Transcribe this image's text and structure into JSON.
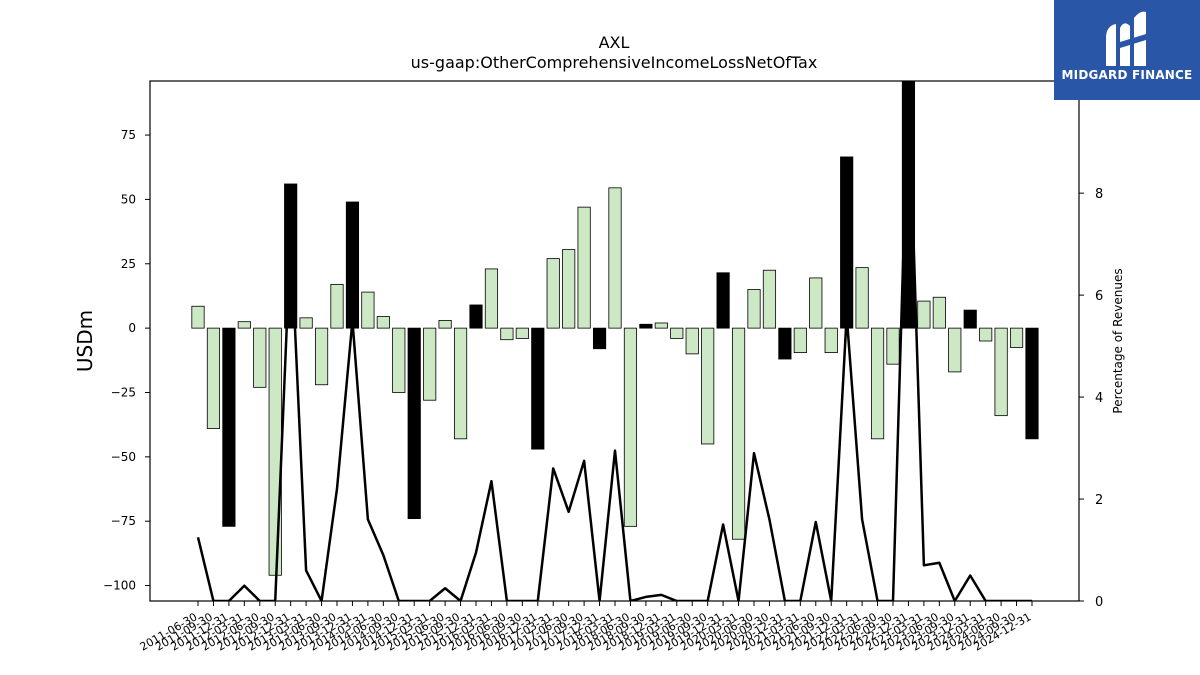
{
  "chart_data": {
    "type": "bar",
    "title": "AXL",
    "subtitle": "us-gaap:OtherComprehensiveIncomeLossNetOfTax",
    "ylabel": "USDm",
    "y2label": "Percentage of Revenues",
    "ylim": [
      -106,
      96
    ],
    "y2lim": [
      0,
      10.2
    ],
    "yticks": [
      -100,
      -75,
      -50,
      -25,
      0,
      25,
      50,
      75
    ],
    "y2ticks": [
      0,
      2,
      4,
      6,
      8
    ],
    "grid": false,
    "legend": "none",
    "colors": {
      "positive_bar": "#cde8c4",
      "negative_highlight_bar": "#000000",
      "bar_edge": "#000000",
      "line": "#000000"
    },
    "categories": [
      "2011-06-30",
      "2011-09-30",
      "2011-12-31",
      "2012-03-31",
      "2012-06-30",
      "2012-09-30",
      "2012-12-31",
      "2013-03-31",
      "2013-06-30",
      "2013-09-30",
      "2013-12-31",
      "2014-03-31",
      "2014-06-30",
      "2014-09-30",
      "2014-12-31",
      "2015-03-31",
      "2015-06-30",
      "2015-09-30",
      "2015-12-31",
      "2016-03-31",
      "2016-06-30",
      "2016-09-30",
      "2016-12-31",
      "2017-03-31",
      "2017-06-30",
      "2017-09-30",
      "2017-12-31",
      "2018-03-31",
      "2018-06-30",
      "2018-09-30",
      "2018-12-31",
      "2019-03-31",
      "2019-06-30",
      "2019-09-30",
      "2019-12-31",
      "2020-03-31",
      "2020-06-30",
      "2020-09-30",
      "2020-12-31",
      "2021-03-31",
      "2021-06-30",
      "2021-09-30",
      "2021-12-31",
      "2022-03-31",
      "2022-06-30",
      "2022-09-30",
      "2022-12-31",
      "2023-03-31",
      "2023-06-30",
      "2023-09-30",
      "2023-12-31",
      "2024-03-31",
      "2024-06-30",
      "2024-09-30",
      "2024-12-31"
    ],
    "series": [
      {
        "values": [
          8.5,
          -39,
          -77,
          2.5,
          -23,
          -96,
          56,
          4,
          -22,
          17,
          49,
          14,
          4.5,
          -25,
          -74,
          -28,
          3,
          -43,
          9,
          23,
          -4.5,
          -4,
          -47,
          27,
          30.5,
          47,
          -8,
          54.5,
          -77,
          1.5,
          2,
          -4,
          -10,
          -45,
          21.5,
          -82,
          15,
          22.5,
          -12,
          -9.5,
          19.5,
          -9.5,
          66.5,
          23.5,
          -43,
          -14,
          96,
          10.5,
          12,
          -17,
          7,
          -5,
          -34,
          -7.5,
          -43
        ],
        "highlight": [
          0,
          0,
          1,
          0,
          0,
          0,
          1,
          0,
          0,
          0,
          1,
          0,
          0,
          0,
          1,
          0,
          0,
          0,
          1,
          0,
          0,
          0,
          1,
          0,
          0,
          0,
          1,
          0,
          0,
          1,
          0,
          0,
          0,
          0,
          1,
          0,
          0,
          0,
          1,
          0,
          0,
          0,
          1,
          0,
          0,
          0,
          1,
          0,
          0,
          0,
          1,
          0,
          0,
          0,
          1
        ]
      },
      {
        "axis": "right",
        "kind": "line",
        "values": [
          1.25,
          0,
          0,
          0.3,
          0,
          0,
          7.2,
          0.6,
          0,
          2.2,
          5.5,
          1.6,
          0.9,
          0,
          0,
          0,
          0.25,
          0,
          0.95,
          2.35,
          0,
          0,
          0,
          2.6,
          1.75,
          2.75,
          0,
          2.95,
          0,
          0.08,
          0.12,
          0,
          0,
          0,
          1.5,
          0,
          2.9,
          1.6,
          0,
          0,
          1.55,
          0,
          5.6,
          1.6,
          0,
          0,
          10.2,
          0.7,
          0.75,
          0,
          0.5,
          0,
          0,
          0,
          0
        ]
      }
    ]
  },
  "brand": {
    "name": "MIDGARD FINANCE",
    "background": "#2a56a8",
    "text_color": "#ffffff",
    "icon": "mf-monogram-icon"
  }
}
